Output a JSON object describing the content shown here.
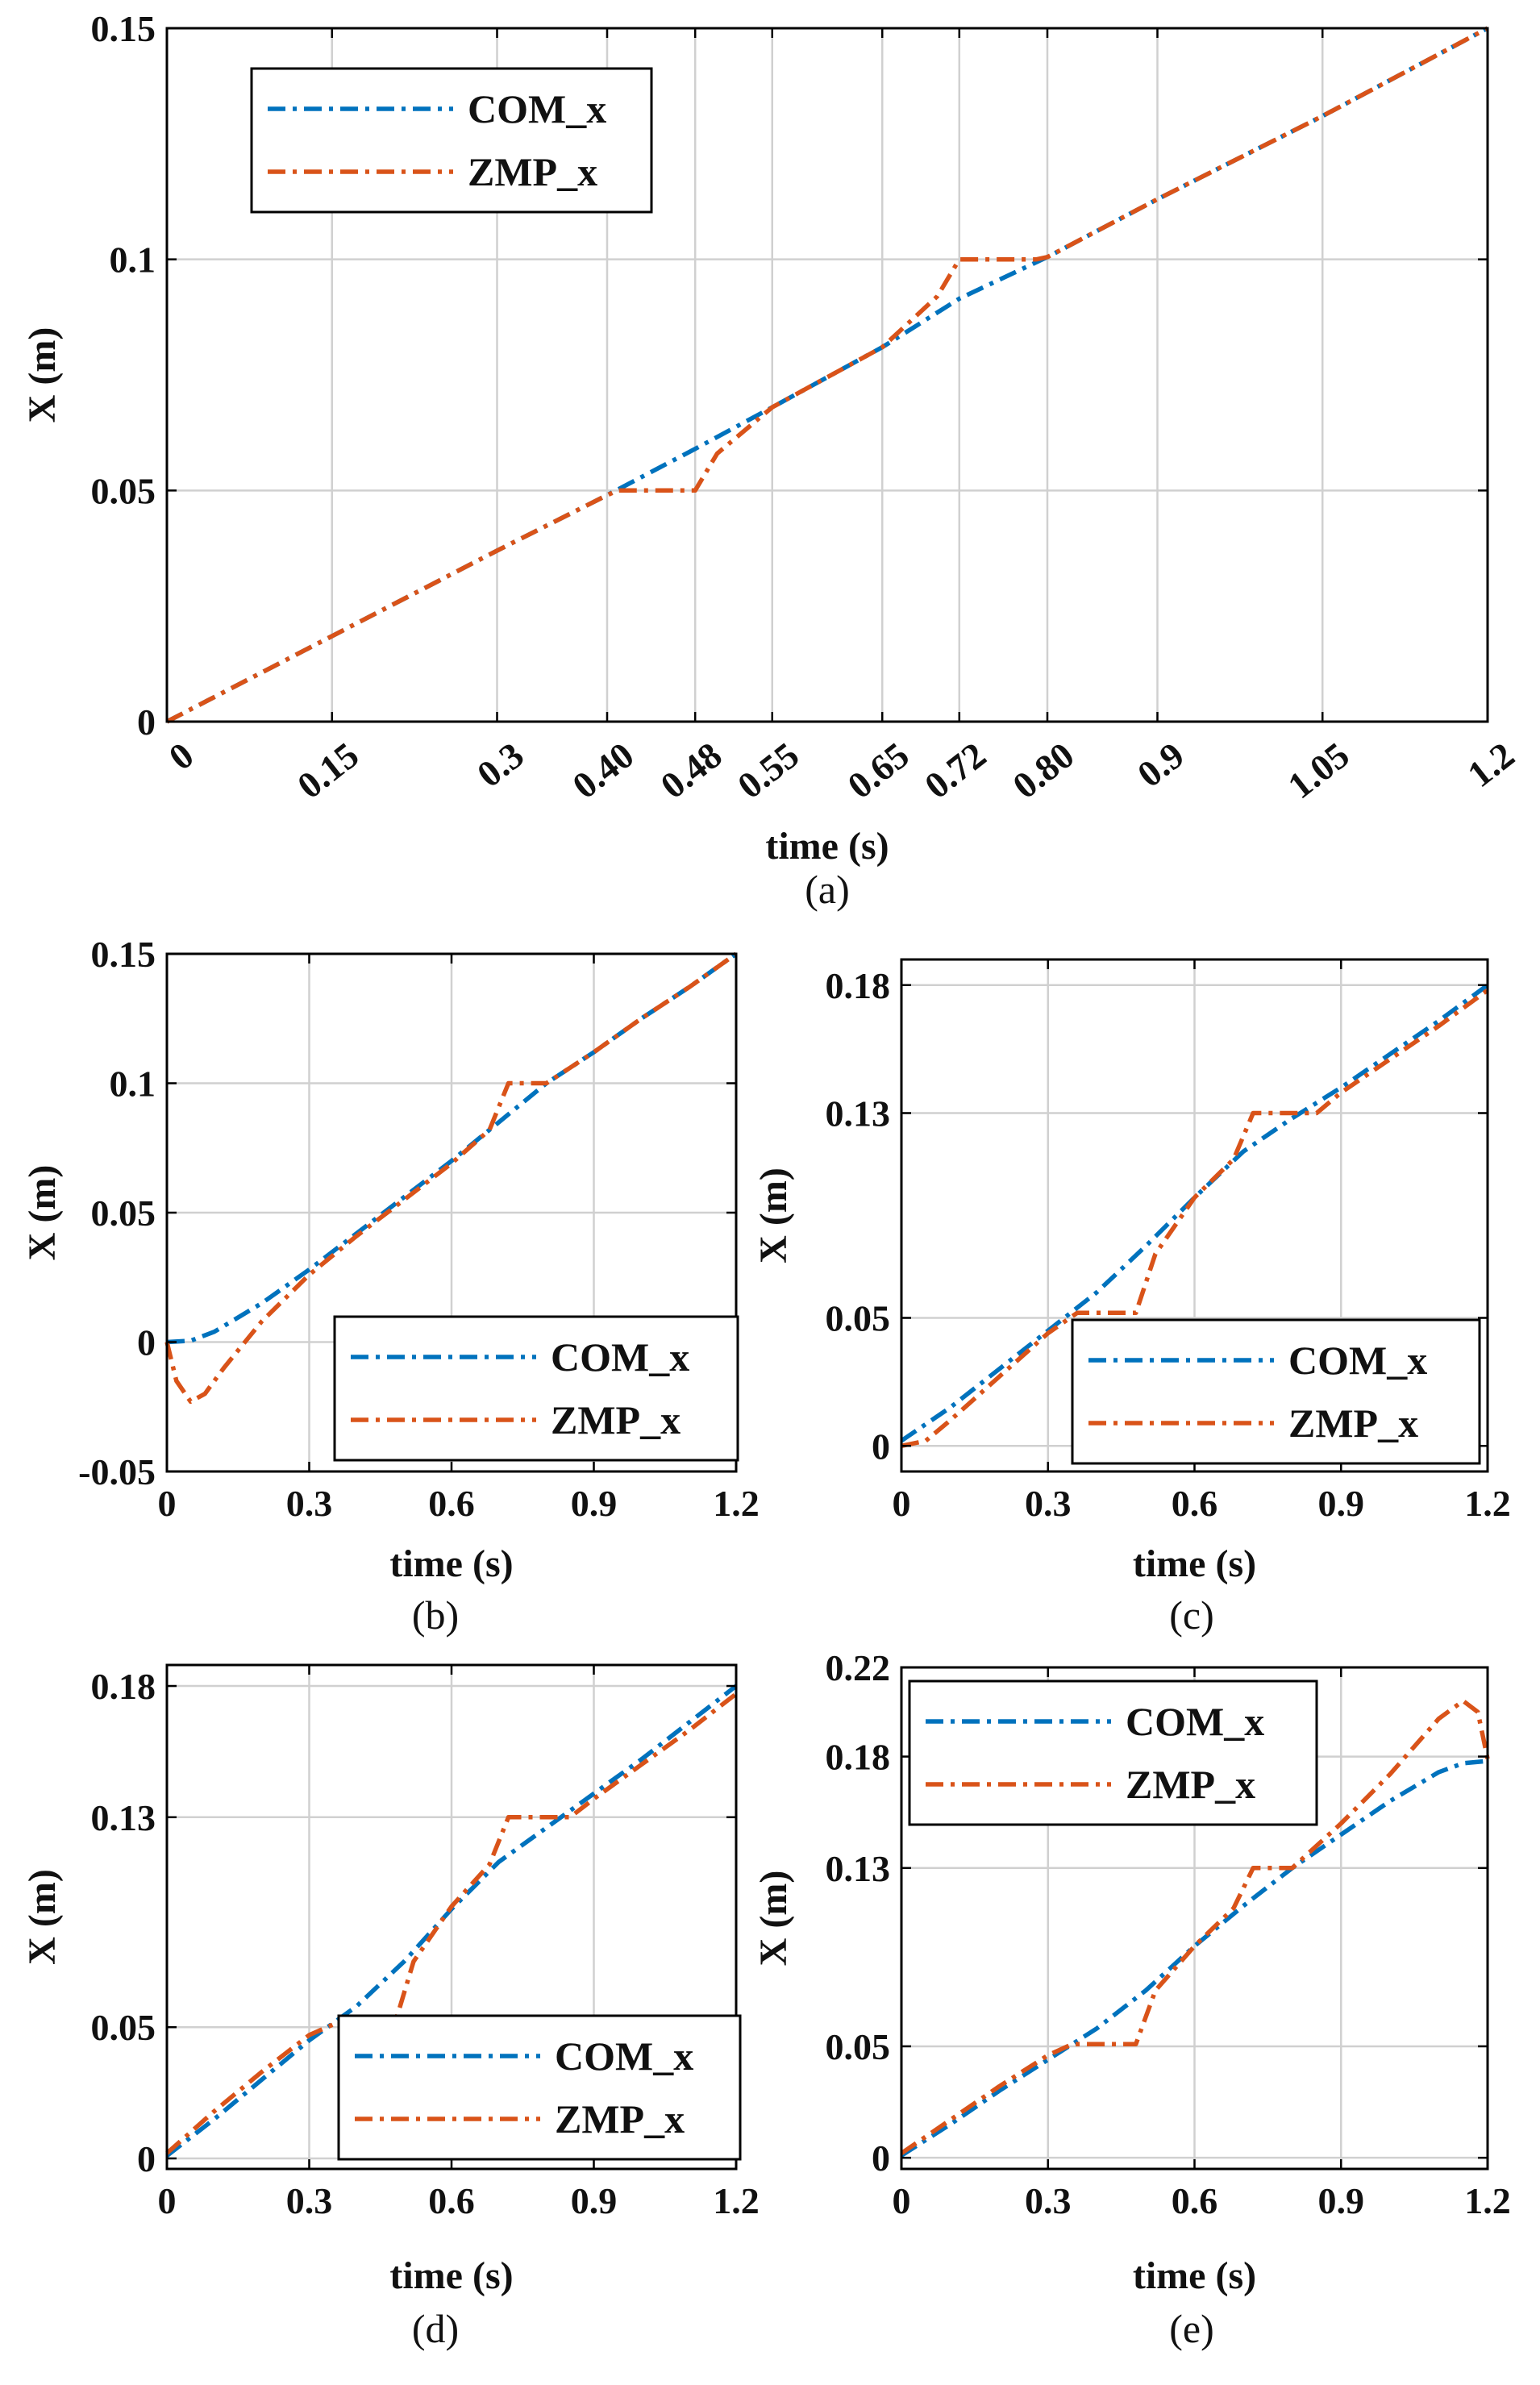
{
  "colors": {
    "com": "#0072BD",
    "zmp": "#D95319",
    "grid": "#d0d0d0",
    "axes": "#000000",
    "background": "#ffffff"
  },
  "chart_data": [
    {
      "id": "a",
      "type": "line",
      "caption": "(a)",
      "xlabel": "time (s)",
      "ylabel": "X (m)",
      "xlim": [
        0,
        1.2
      ],
      "ylim": [
        0,
        0.15
      ],
      "xticks": [
        0,
        0.15,
        0.3,
        0.4,
        0.48,
        0.55,
        0.65,
        0.72,
        0.8,
        0.9,
        1.05,
        1.2
      ],
      "xtick_labels": [
        "0",
        "0.15",
        "0.3",
        "0.40",
        "0.48",
        "0.55",
        "0.65",
        "0.72",
        "0.80",
        "0.9",
        "1.05",
        "1.2"
      ],
      "yticks": [
        0,
        0.05,
        0.1,
        0.15
      ],
      "ytick_labels": [
        "0",
        "0.05",
        "0.1",
        "0.15"
      ],
      "grid": true,
      "legend": {
        "position": "top-left",
        "entries": [
          "COM_x",
          "ZMP_x"
        ]
      },
      "series": [
        {
          "name": "COM_x",
          "color": "#0072BD",
          "x": [
            0,
            0.15,
            0.3,
            0.4,
            0.48,
            0.55,
            0.65,
            0.72,
            0.8,
            0.9,
            1.05,
            1.2
          ],
          "y": [
            0,
            0.0185,
            0.037,
            0.049,
            0.059,
            0.068,
            0.081,
            0.0915,
            0.1005,
            0.113,
            0.131,
            0.15
          ]
        },
        {
          "name": "ZMP_x",
          "color": "#D95319",
          "x": [
            0,
            0.15,
            0.3,
            0.4,
            0.41,
            0.48,
            0.5,
            0.55,
            0.65,
            0.7,
            0.72,
            0.79,
            0.8,
            0.9,
            1.05,
            1.2
          ],
          "y": [
            0,
            0.0185,
            0.037,
            0.049,
            0.05,
            0.05,
            0.058,
            0.068,
            0.081,
            0.092,
            0.1,
            0.1,
            0.1005,
            0.113,
            0.131,
            0.15
          ]
        }
      ]
    },
    {
      "id": "b",
      "type": "line",
      "caption": "(b)",
      "xlabel": "time (s)",
      "ylabel": "X (m)",
      "xlim": [
        0,
        1.2
      ],
      "ylim": [
        -0.05,
        0.15
      ],
      "xticks": [
        0,
        0.3,
        0.6,
        0.9,
        1.2
      ],
      "xtick_labels": [
        "0",
        "0.3",
        "0.6",
        "0.9",
        "1.2"
      ],
      "yticks": [
        -0.05,
        0,
        0.05,
        0.1,
        0.15
      ],
      "ytick_labels": [
        "-0.05",
        "0",
        "0.05",
        "0.1",
        "0.15"
      ],
      "grid": true,
      "legend": {
        "position": "bottom-right",
        "entries": [
          "COM_x",
          "ZMP_x"
        ]
      },
      "series": [
        {
          "name": "COM_x",
          "color": "#0072BD",
          "x": [
            0,
            0.05,
            0.1,
            0.2,
            0.3,
            0.4,
            0.5,
            0.6,
            0.7,
            0.8,
            0.9,
            1.0,
            1.1,
            1.2
          ],
          "y": [
            0,
            0.0005,
            0.004,
            0.015,
            0.028,
            0.042,
            0.056,
            0.07,
            0.085,
            0.1,
            0.112,
            0.125,
            0.137,
            0.15
          ]
        },
        {
          "name": "ZMP_x",
          "color": "#D95319",
          "x": [
            0,
            0.02,
            0.05,
            0.08,
            0.12,
            0.2,
            0.3,
            0.4,
            0.5,
            0.6,
            0.68,
            0.72,
            0.8,
            0.9,
            1.0,
            1.1,
            1.2
          ],
          "y": [
            0,
            -0.015,
            -0.023,
            -0.02,
            -0.01,
            0.008,
            0.026,
            0.041,
            0.055,
            0.069,
            0.082,
            0.1,
            0.1,
            0.112,
            0.125,
            0.137,
            0.15
          ]
        }
      ]
    },
    {
      "id": "c",
      "type": "line",
      "caption": "(c)",
      "xlabel": "time (s)",
      "ylabel": "X (m)",
      "xlim": [
        0,
        1.2
      ],
      "ylim": [
        -0.01,
        0.19
      ],
      "xticks": [
        0,
        0.3,
        0.6,
        0.9,
        1.2
      ],
      "xtick_labels": [
        "0",
        "0.3",
        "0.6",
        "0.9",
        "1.2"
      ],
      "yticks": [
        0,
        0.05,
        0.13,
        0.18
      ],
      "ytick_labels": [
        "0",
        "0.05",
        "0.13",
        "0.18"
      ],
      "grid": true,
      "legend": {
        "position": "bottom-right",
        "entries": [
          "COM_x",
          "ZMP_x"
        ]
      },
      "series": [
        {
          "name": "COM_x",
          "color": "#0072BD",
          "x": [
            0,
            0.1,
            0.2,
            0.3,
            0.4,
            0.5,
            0.6,
            0.7,
            0.8,
            0.9,
            1.0,
            1.1,
            1.2
          ],
          "y": [
            0.002,
            0.015,
            0.03,
            0.045,
            0.06,
            0.078,
            0.097,
            0.115,
            0.128,
            0.14,
            0.153,
            0.166,
            0.18
          ]
        },
        {
          "name": "ZMP_x",
          "color": "#D95319",
          "x": [
            0,
            0.05,
            0.1,
            0.2,
            0.3,
            0.36,
            0.48,
            0.52,
            0.6,
            0.68,
            0.72,
            0.85,
            0.9,
            1.0,
            1.1,
            1.2
          ],
          "y": [
            0,
            0.002,
            0.01,
            0.027,
            0.044,
            0.052,
            0.052,
            0.075,
            0.097,
            0.112,
            0.13,
            0.13,
            0.138,
            0.151,
            0.164,
            0.178
          ]
        }
      ]
    },
    {
      "id": "d",
      "type": "line",
      "caption": "(d)",
      "xlabel": "time (s)",
      "ylabel": "X (m)",
      "xlim": [
        0,
        1.2
      ],
      "ylim": [
        -0.004,
        0.188
      ],
      "xticks": [
        0,
        0.3,
        0.6,
        0.9,
        1.2
      ],
      "xtick_labels": [
        "0",
        "0.3",
        "0.6",
        "0.9",
        "1.2"
      ],
      "yticks": [
        0,
        0.05,
        0.13,
        0.18
      ],
      "ytick_labels": [
        "0",
        "0.05",
        "0.13",
        "0.18"
      ],
      "grid": true,
      "legend": {
        "position": "bottom-right",
        "entries": [
          "COM_x",
          "ZMP_x"
        ]
      },
      "series": [
        {
          "name": "COM_x",
          "color": "#0072BD",
          "x": [
            0,
            0.1,
            0.2,
            0.3,
            0.4,
            0.5,
            0.6,
            0.7,
            0.8,
            0.9,
            1.0,
            1.1,
            1.2
          ],
          "y": [
            0.001,
            0.015,
            0.03,
            0.045,
            0.058,
            0.075,
            0.095,
            0.113,
            0.126,
            0.139,
            0.152,
            0.166,
            0.18
          ]
        },
        {
          "name": "ZMP_x",
          "color": "#D95319",
          "x": [
            0,
            0.1,
            0.2,
            0.3,
            0.35,
            0.48,
            0.52,
            0.6,
            0.68,
            0.72,
            0.85,
            0.9,
            1.0,
            1.1,
            1.2
          ],
          "y": [
            0.002,
            0.018,
            0.033,
            0.047,
            0.051,
            0.051,
            0.075,
            0.096,
            0.112,
            0.13,
            0.13,
            0.137,
            0.15,
            0.163,
            0.177
          ]
        }
      ]
    },
    {
      "id": "e",
      "type": "line",
      "caption": "(e)",
      "xlabel": "time (s)",
      "ylabel": "X (m)",
      "xlim": [
        0,
        1.2
      ],
      "ylim": [
        -0.005,
        0.22
      ],
      "xticks": [
        0,
        0.3,
        0.6,
        0.9,
        1.2
      ],
      "xtick_labels": [
        "0",
        "0.3",
        "0.6",
        "0.9",
        "1.2"
      ],
      "yticks": [
        0,
        0.05,
        0.13,
        0.18,
        0.22
      ],
      "ytick_labels": [
        "0",
        "0.05",
        "0.13",
        "0.18",
        "0.22"
      ],
      "grid": true,
      "legend": {
        "position": "top-left",
        "entries": [
          "COM_x",
          "ZMP_x"
        ]
      },
      "series": [
        {
          "name": "COM_x",
          "color": "#0072BD",
          "x": [
            0,
            0.1,
            0.2,
            0.3,
            0.4,
            0.5,
            0.6,
            0.7,
            0.8,
            0.9,
            1.0,
            1.1,
            1.15,
            1.2
          ],
          "y": [
            0.001,
            0.015,
            0.03,
            0.044,
            0.058,
            0.075,
            0.095,
            0.113,
            0.13,
            0.145,
            0.16,
            0.173,
            0.177,
            0.178
          ]
        },
        {
          "name": "ZMP_x",
          "color": "#D95319",
          "x": [
            0,
            0.1,
            0.2,
            0.3,
            0.35,
            0.48,
            0.52,
            0.6,
            0.68,
            0.72,
            0.8,
            0.9,
            1.0,
            1.1,
            1.15,
            1.18,
            1.2
          ],
          "y": [
            0.002,
            0.017,
            0.032,
            0.046,
            0.051,
            0.051,
            0.075,
            0.095,
            0.112,
            0.13,
            0.13,
            0.15,
            0.172,
            0.197,
            0.205,
            0.2,
            0.179
          ]
        }
      ]
    }
  ]
}
